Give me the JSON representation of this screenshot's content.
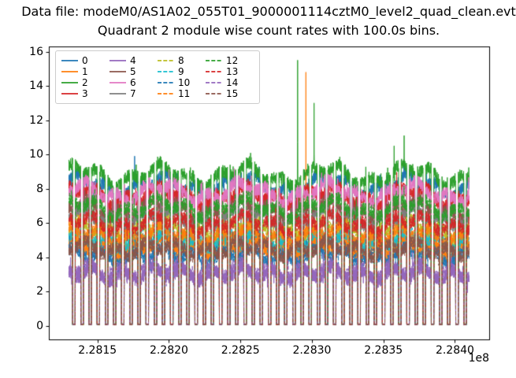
{
  "chart_data": {
    "type": "line",
    "suptitle": "Data file: modeM0/AS1A02_055T01_9000001114cztM0_level2_quad_clean.evt",
    "title": "Quadrant 2 module wise count rates with 100.0s bins.",
    "xlabel": "",
    "ylabel": "",
    "x_offset_label": "1e8",
    "xlim": [
      228116000,
      228424000
    ],
    "ylim": [
      -0.8,
      16.3
    ],
    "t_start": 228130000,
    "t_end": 228410000,
    "bin_seconds": 100.0,
    "xticks": [
      {
        "value": 228150000,
        "label": "2.2815"
      },
      {
        "value": 228200000,
        "label": "2.2820"
      },
      {
        "value": 228250000,
        "label": "2.2825"
      },
      {
        "value": 228300000,
        "label": "2.2830"
      },
      {
        "value": 228350000,
        "label": "2.2835"
      },
      {
        "value": 228400000,
        "label": "2.2840"
      }
    ],
    "yticks": [
      {
        "value": 0,
        "label": "0"
      },
      {
        "value": 2,
        "label": "2"
      },
      {
        "value": 4,
        "label": "4"
      },
      {
        "value": 6,
        "label": "6"
      },
      {
        "value": 8,
        "label": "8"
      },
      {
        "value": 10,
        "label": "10"
      },
      {
        "value": 12,
        "label": "12"
      },
      {
        "value": 14,
        "label": "14"
      },
      {
        "value": 16,
        "label": "16"
      }
    ],
    "legend": {
      "loc": "upper left",
      "ncol": 4
    },
    "gap": {
      "period_s": 5700,
      "fraction": 0.3,
      "phase_s": 3000
    },
    "seed": 42,
    "noise_amp": 0.38,
    "series": [
      {
        "name": "0",
        "color": "#1f77b4",
        "dashed": false,
        "base": 8.2
      },
      {
        "name": "1",
        "color": "#ff7f0e",
        "dashed": false,
        "base": 4.6
      },
      {
        "name": "2",
        "color": "#2ca02c",
        "dashed": false,
        "base": 8.8
      },
      {
        "name": "3",
        "color": "#d62728",
        "dashed": false,
        "base": 7.6
      },
      {
        "name": "4",
        "color": "#9467bd",
        "dashed": false,
        "base": 3.0
      },
      {
        "name": "5",
        "color": "#8c564b",
        "dashed": false,
        "base": 6.8
      },
      {
        "name": "6",
        "color": "#e377c2",
        "dashed": false,
        "base": 7.8
      },
      {
        "name": "7",
        "color": "#7f7f7f",
        "dashed": false,
        "base": 6.3
      },
      {
        "name": "8",
        "color": "#bcbd22",
        "dashed": true,
        "base": 5.6
      },
      {
        "name": "9",
        "color": "#17becf",
        "dashed": true,
        "base": 5.0
      },
      {
        "name": "10",
        "color": "#1f77b4",
        "dashed": true,
        "base": 4.1
      },
      {
        "name": "11",
        "color": "#ff7f0e",
        "dashed": true,
        "base": 5.3
      },
      {
        "name": "12",
        "color": "#2ca02c",
        "dashed": true,
        "base": 6.9
      },
      {
        "name": "13",
        "color": "#d62728",
        "dashed": true,
        "base": 6.0
      },
      {
        "name": "14",
        "color": "#9467bd",
        "dashed": true,
        "base": 3.2
      },
      {
        "name": "15",
        "color": "#8c564b",
        "dashed": true,
        "base": 4.5
      }
    ],
    "spikes": [
      {
        "t": 228176000,
        "series": 0,
        "peak": 9.9
      },
      {
        "t": 228290000,
        "series": 2,
        "peak": 15.5
      },
      {
        "t": 228295800,
        "series": 1,
        "peak": 14.8
      },
      {
        "t": 228301500,
        "series": 2,
        "peak": 13.0
      },
      {
        "t": 228357500,
        "series": 2,
        "peak": 10.5
      },
      {
        "t": 228364500,
        "series": 2,
        "peak": 11.1
      }
    ]
  }
}
